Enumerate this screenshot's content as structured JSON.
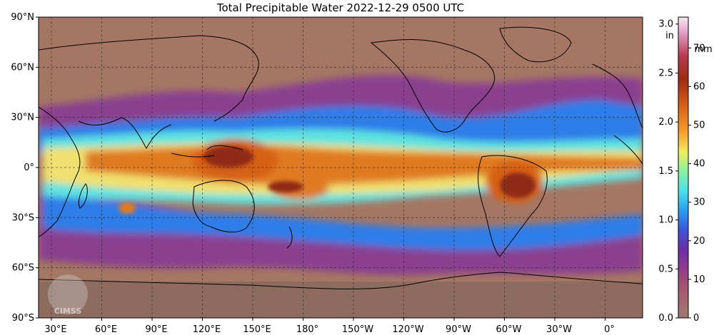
{
  "title": "Total Precipitable Water  2022-12-29 0500 UTC",
  "lat_labels": [
    "90°N",
    "60°N",
    "30°N",
    "0°",
    "30°S",
    "60°S",
    "90°S"
  ],
  "lon_labels": [
    "30°E",
    "60°E",
    "90°E",
    "120°E",
    "150°E",
    "180°",
    "150°W",
    "120°W",
    "90°W",
    "60°W",
    "30°W",
    "0°"
  ],
  "colorbar": {
    "in_unit": "in",
    "mm_unit": "mm",
    "in_ticks": [
      "0.0",
      "0.5",
      "1.0",
      "1.5",
      "2.0",
      "2.5",
      "3.0"
    ],
    "mm_ticks": [
      "0",
      "10",
      "20",
      "30",
      "40",
      "50",
      "60",
      "70"
    ],
    "range_mm": [
      0,
      78
    ],
    "stops": [
      {
        "v": 0,
        "color": "#9e7b6e"
      },
      {
        "v": 8,
        "color": "#a5566f"
      },
      {
        "v": 13,
        "color": "#8e3c8e"
      },
      {
        "v": 18,
        "color": "#6a2fa8"
      },
      {
        "v": 23,
        "color": "#3a58d8"
      },
      {
        "v": 28,
        "color": "#2aa0f0"
      },
      {
        "v": 33,
        "color": "#4fe0e8"
      },
      {
        "v": 38,
        "color": "#8af0a0"
      },
      {
        "v": 43,
        "color": "#f0ee60"
      },
      {
        "v": 48,
        "color": "#f8a030"
      },
      {
        "v": 55,
        "color": "#d66018"
      },
      {
        "v": 62,
        "color": "#9c2a14"
      },
      {
        "v": 68,
        "color": "#b83c50"
      },
      {
        "v": 74,
        "color": "#e0a0c8"
      },
      {
        "v": 78,
        "color": "#f8e8f0"
      }
    ]
  },
  "colors": {
    "dry": "#a57664",
    "land": "#8c6a5e",
    "moist_purple": "#8a3f8f",
    "blue": "#2f7de8",
    "cyan": "#5fe3e0",
    "yellow": "#f0e070",
    "orange": "#e07a20",
    "dark_red": "#8f2a14"
  },
  "logo": {
    "text": "CIMSS"
  }
}
